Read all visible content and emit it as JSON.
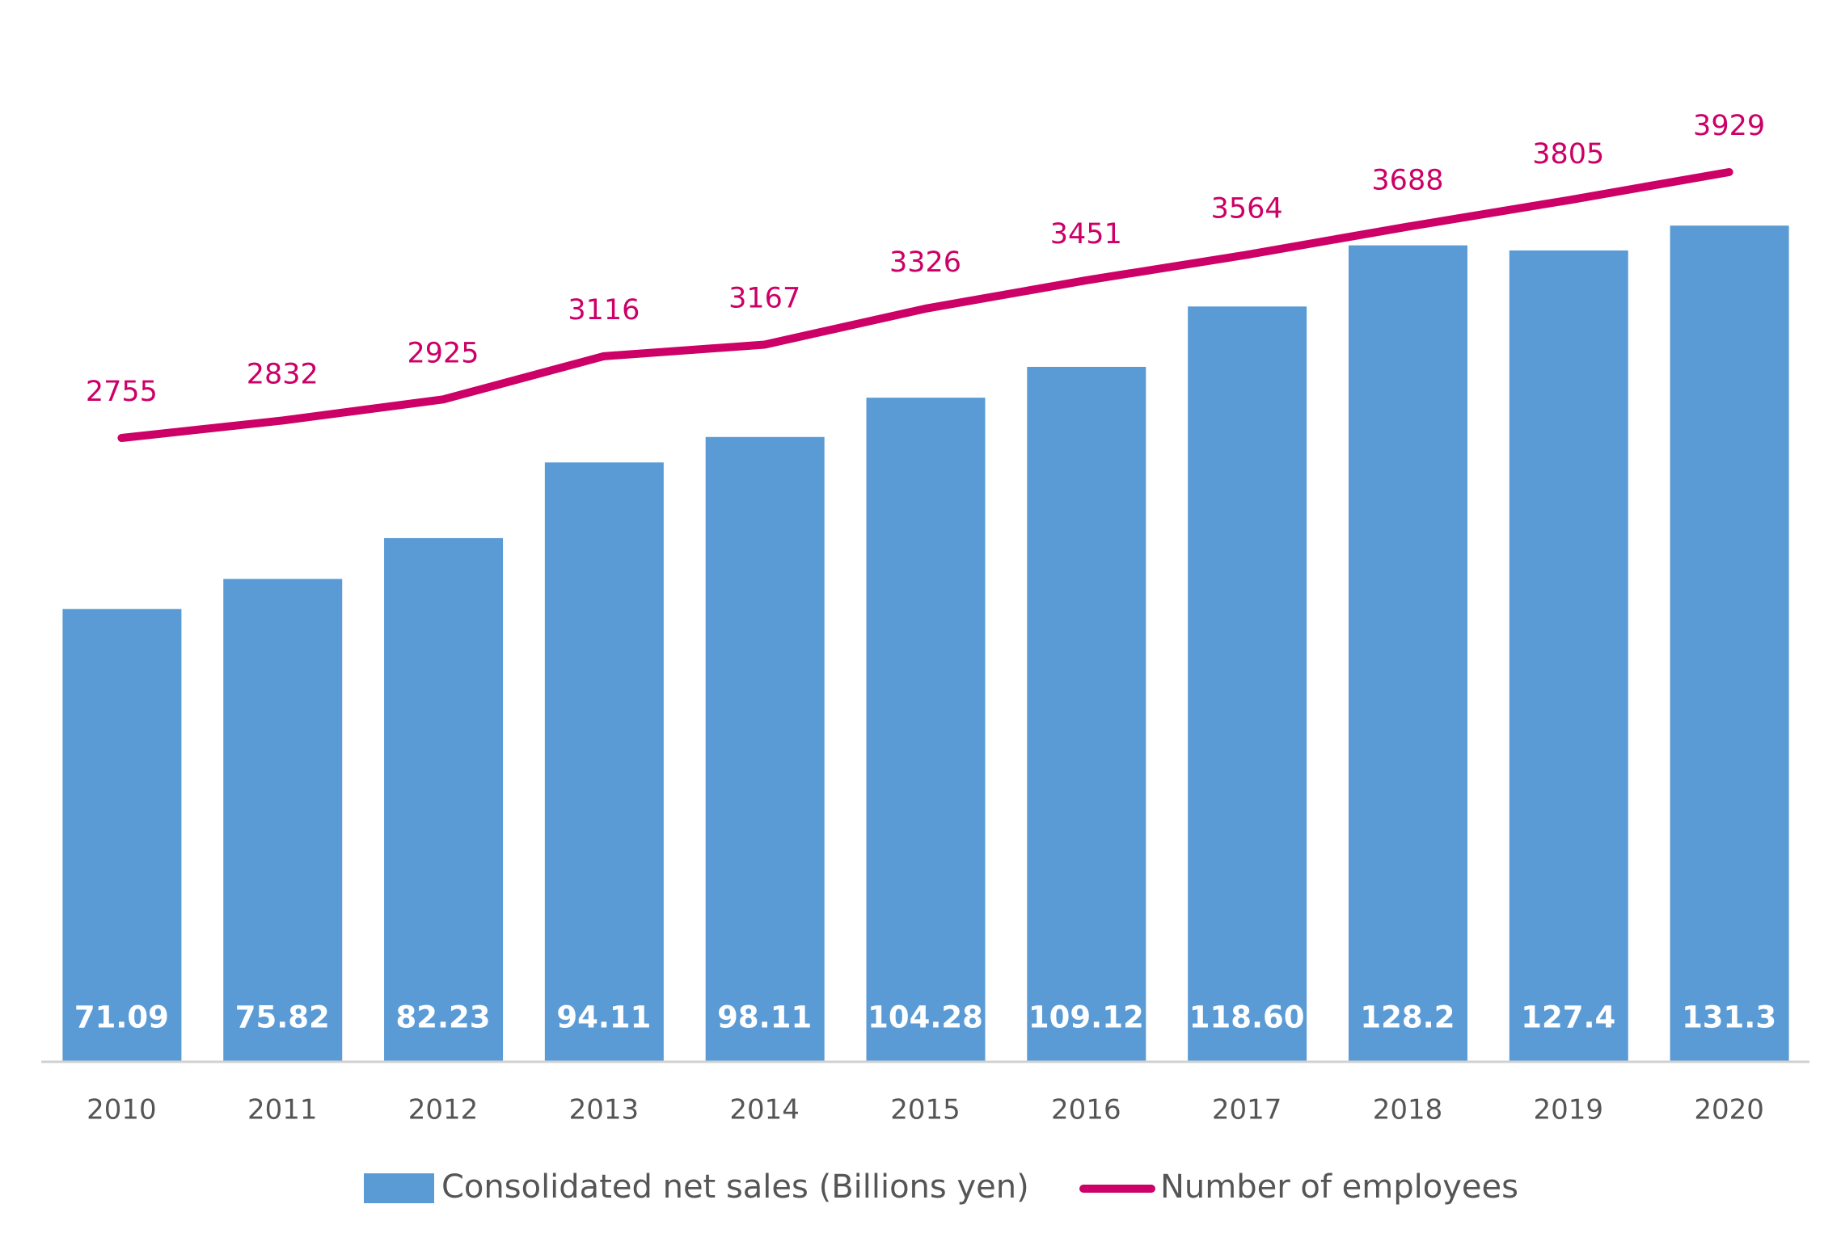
{
  "chart_data": {
    "type": "bar-line",
    "categories": [
      "2010",
      "2011",
      "2012",
      "2013",
      "2014",
      "2015",
      "2016",
      "2017",
      "2018",
      "2019",
      "2020"
    ],
    "series": [
      {
        "name": "Consolidated net sales (Billions yen)",
        "type": "bar",
        "color": "#5b9bd5",
        "values": [
          71.09,
          75.82,
          82.23,
          94.11,
          98.11,
          104.28,
          109.12,
          118.6,
          128.2,
          127.4,
          131.3
        ],
        "value_labels": [
          "71.09",
          "75.82",
          "82.23",
          "94.11",
          "98.11",
          "104.28",
          "109.12",
          "118.60",
          "128.2",
          "127.4",
          "131.3"
        ]
      },
      {
        "name": "Number of employees",
        "type": "line",
        "axis": "y2",
        "color": "#cc0066",
        "values": [
          2755,
          2832,
          2925,
          3116,
          3167,
          3326,
          3451,
          3564,
          3688,
          3805,
          3929
        ]
      }
    ],
    "ylim": [
      0,
      160
    ],
    "y2lim": [
      0,
      4500
    ],
    "grid": false
  }
}
